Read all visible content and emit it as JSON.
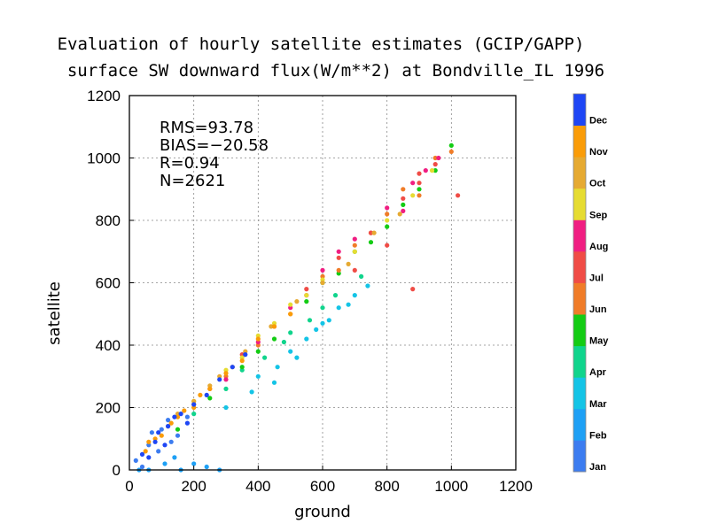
{
  "chart_data": {
    "type": "scatter",
    "title": "Evaluation of hourly satellite estimates (GCIP/GAPP)",
    "subtitle": "surface SW downward flux(W/m**2) at Bondville_IL 1996",
    "xlabel": "ground",
    "ylabel": "satellite",
    "xlim": [
      0,
      1200
    ],
    "ylim": [
      0,
      1200
    ],
    "xticks": [
      0,
      200,
      400,
      600,
      800,
      1000,
      1200
    ],
    "yticks": [
      0,
      200,
      400,
      600,
      800,
      1000,
      1200
    ],
    "grid": true,
    "stats": {
      "rms": "RMS=93.78",
      "bias": "BIAS=−20.58",
      "r": "R=0.94",
      "n": "N=2621"
    },
    "colorbar": {
      "placement": "right",
      "months": [
        {
          "label": "Jan",
          "color": "#3c7cf0"
        },
        {
          "label": "Feb",
          "color": "#1ea0f5"
        },
        {
          "label": "Mar",
          "color": "#14c4e6"
        },
        {
          "label": "Apr",
          "color": "#10d48c"
        },
        {
          "label": "May",
          "color": "#14cc14"
        },
        {
          "label": "Jun",
          "color": "#f07c28"
        },
        {
          "label": "Jul",
          "color": "#f04c46"
        },
        {
          "label": "Aug",
          "color": "#f01e82"
        },
        {
          "label": "Sep",
          "color": "#e6dc32"
        },
        {
          "label": "Oct",
          "color": "#e6aa32"
        },
        {
          "label": "Nov",
          "color": "#fa9c08"
        },
        {
          "label": "Dec",
          "color": "#1e46f5"
        }
      ]
    },
    "series": [
      {
        "values": [
          [
            20,
            30
          ],
          [
            60,
            80
          ],
          [
            90,
            60
          ],
          [
            120,
            160
          ],
          [
            150,
            110
          ],
          [
            40,
            10
          ],
          [
            100,
            130
          ],
          [
            180,
            170
          ],
          [
            70,
            120
          ],
          [
            130,
            90
          ]
        ]
      },
      {
        "values": [
          [
            30,
            0
          ],
          [
            110,
            20
          ],
          [
            160,
            0
          ],
          [
            200,
            20
          ],
          [
            240,
            10
          ],
          [
            280,
            0
          ],
          [
            60,
            0
          ],
          [
            140,
            40
          ]
        ]
      },
      {
        "values": [
          [
            300,
            200
          ],
          [
            400,
            300
          ],
          [
            500,
            380
          ],
          [
            550,
            420
          ],
          [
            600,
            470
          ],
          [
            650,
            520
          ],
          [
            700,
            560
          ],
          [
            380,
            250
          ],
          [
            460,
            330
          ],
          [
            520,
            360
          ],
          [
            580,
            450
          ],
          [
            450,
            280
          ],
          [
            620,
            480
          ],
          [
            680,
            530
          ],
          [
            740,
            590
          ]
        ]
      },
      {
        "values": [
          [
            200,
            180
          ],
          [
            300,
            260
          ],
          [
            420,
            360
          ],
          [
            500,
            440
          ],
          [
            560,
            480
          ],
          [
            640,
            560
          ],
          [
            720,
            620
          ],
          [
            350,
            320
          ],
          [
            480,
            410
          ],
          [
            600,
            520
          ]
        ]
      },
      {
        "values": [
          [
            150,
            130
          ],
          [
            250,
            230
          ],
          [
            350,
            330
          ],
          [
            450,
            420
          ],
          [
            550,
            540
          ],
          [
            650,
            630
          ],
          [
            750,
            730
          ],
          [
            850,
            850
          ],
          [
            950,
            960
          ],
          [
            1000,
            1040
          ],
          [
            700,
            700
          ],
          [
            800,
            780
          ],
          [
            900,
            900
          ],
          [
            400,
            380
          ],
          [
            600,
            600
          ]
        ]
      },
      {
        "values": [
          [
            200,
            210
          ],
          [
            300,
            300
          ],
          [
            400,
            400
          ],
          [
            500,
            500
          ],
          [
            600,
            620
          ],
          [
            700,
            720
          ],
          [
            800,
            820
          ],
          [
            900,
            880
          ],
          [
            950,
            1000
          ],
          [
            1000,
            1020
          ],
          [
            650,
            640
          ],
          [
            750,
            760
          ],
          [
            850,
            900
          ]
        ]
      },
      {
        "values": [
          [
            250,
            260
          ],
          [
            350,
            370
          ],
          [
            450,
            460
          ],
          [
            550,
            580
          ],
          [
            650,
            680
          ],
          [
            750,
            760
          ],
          [
            850,
            870
          ],
          [
            900,
            920
          ],
          [
            950,
            980
          ],
          [
            900,
            950
          ],
          [
            1020,
            880
          ],
          [
            880,
            580
          ],
          [
            800,
            720
          ],
          [
            700,
            640
          ]
        ]
      },
      {
        "values": [
          [
            300,
            290
          ],
          [
            400,
            410
          ],
          [
            500,
            520
          ],
          [
            600,
            640
          ],
          [
            700,
            740
          ],
          [
            800,
            840
          ],
          [
            880,
            920
          ],
          [
            920,
            960
          ],
          [
            960,
            1000
          ],
          [
            850,
            830
          ],
          [
            550,
            560
          ],
          [
            650,
            700
          ]
        ]
      },
      {
        "values": [
          [
            200,
            220
          ],
          [
            300,
            320
          ],
          [
            400,
            430
          ],
          [
            500,
            530
          ],
          [
            600,
            610
          ],
          [
            700,
            700
          ],
          [
            800,
            800
          ],
          [
            880,
            880
          ],
          [
            940,
            960
          ],
          [
            350,
            360
          ],
          [
            450,
            470
          ],
          [
            550,
            560
          ]
        ]
      },
      {
        "values": [
          [
            120,
            140
          ],
          [
            200,
            220
          ],
          [
            280,
            300
          ],
          [
            360,
            380
          ],
          [
            440,
            460
          ],
          [
            520,
            540
          ],
          [
            600,
            600
          ],
          [
            680,
            660
          ],
          [
            760,
            760
          ],
          [
            840,
            820
          ],
          [
            150,
            180
          ],
          [
            250,
            270
          ],
          [
            320,
            330
          ]
        ]
      },
      {
        "values": [
          [
            50,
            60
          ],
          [
            100,
            110
          ],
          [
            150,
            170
          ],
          [
            200,
            200
          ],
          [
            250,
            260
          ],
          [
            300,
            310
          ],
          [
            350,
            350
          ],
          [
            400,
            420
          ],
          [
            450,
            460
          ],
          [
            500,
            500
          ],
          [
            80,
            100
          ],
          [
            170,
            190
          ],
          [
            220,
            240
          ],
          [
            60,
            90
          ],
          [
            130,
            150
          ]
        ]
      },
      {
        "values": [
          [
            40,
            50
          ],
          [
            80,
            90
          ],
          [
            120,
            140
          ],
          [
            160,
            180
          ],
          [
            200,
            210
          ],
          [
            240,
            240
          ],
          [
            280,
            290
          ],
          [
            320,
            330
          ],
          [
            360,
            370
          ],
          [
            90,
            120
          ],
          [
            140,
            170
          ],
          [
            180,
            150
          ],
          [
            60,
            40
          ],
          [
            110,
            80
          ]
        ]
      }
    ]
  }
}
